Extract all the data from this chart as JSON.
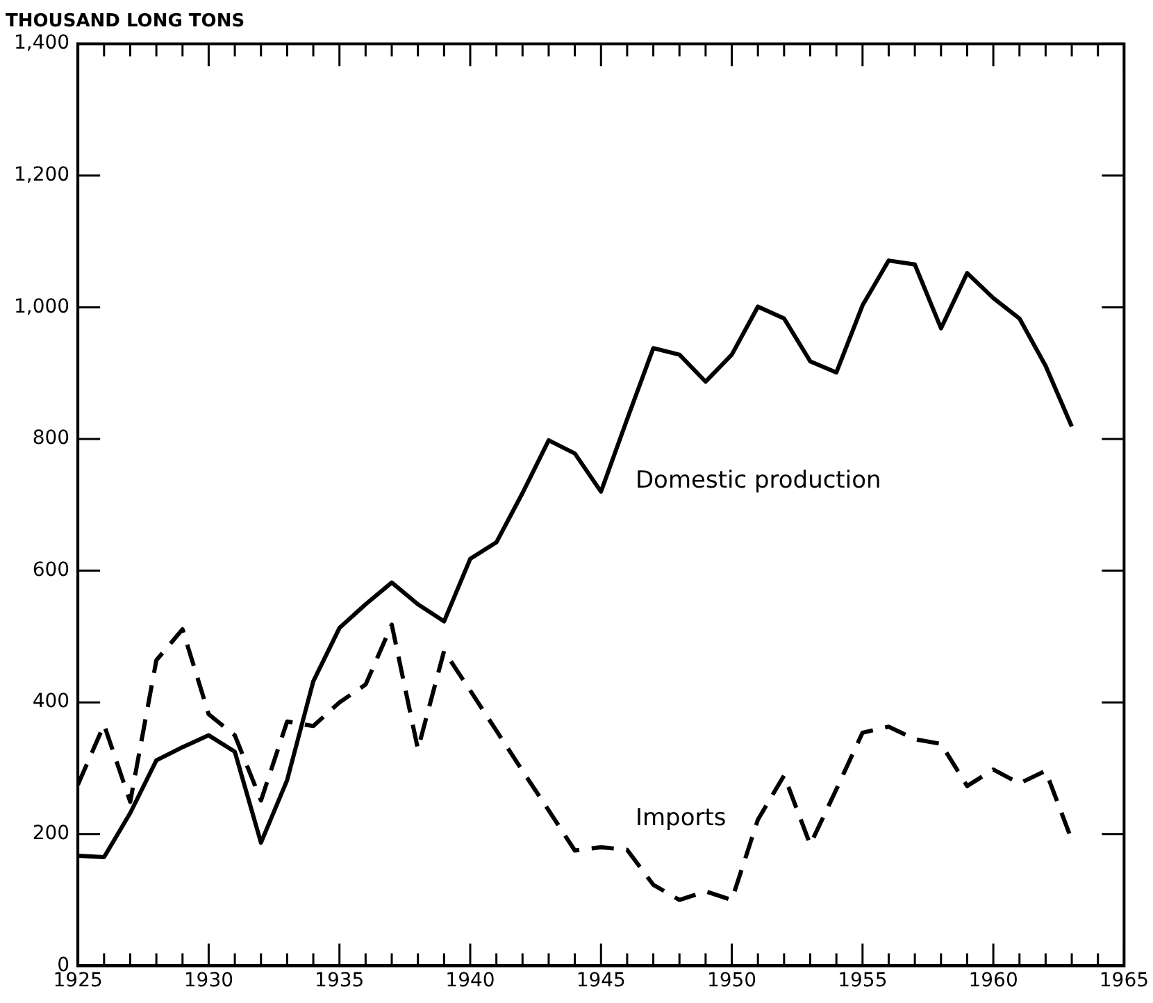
{
  "chart_data": {
    "type": "line",
    "ylabel": "THOUSAND LONG TONS",
    "x": [
      1925,
      1926,
      1927,
      1928,
      1929,
      1930,
      1931,
      1932,
      1933,
      1934,
      1935,
      1936,
      1937,
      1938,
      1939,
      1940,
      1941,
      1942,
      1943,
      1944,
      1945,
      1946,
      1947,
      1948,
      1949,
      1950,
      1951,
      1952,
      1953,
      1954,
      1955,
      1956,
      1957,
      1958,
      1959,
      1960,
      1961,
      1962,
      1963
    ],
    "series": [
      {
        "name": "Domestic production",
        "color": "#000000",
        "line_style": "solid",
        "values": [
          167,
          165,
          232,
          312,
          332,
          350,
          325,
          187,
          282,
          432,
          513,
          549,
          582,
          549,
          523,
          618,
          643,
          718,
          798,
          778,
          720,
          830,
          938,
          928,
          887,
          928,
          1001,
          983,
          918,
          901,
          1003,
          1071,
          1065,
          968,
          1052,
          1014,
          983,
          911,
          819
        ]
      },
      {
        "name": "Imports",
        "color": "#000000",
        "line_style": "dashed",
        "values": [
          275,
          366,
          249,
          464,
          511,
          382,
          350,
          251,
          371,
          364,
          400,
          427,
          518,
          329,
          478,
          418,
          357,
          296,
          236,
          175,
          180,
          176,
          123,
          100,
          113,
          100,
          222,
          289,
          184,
          268,
          354,
          363,
          344,
          337,
          273,
          298,
          277,
          296,
          191
        ]
      }
    ],
    "xlim": [
      1925,
      1965
    ],
    "xticks": [
      1925,
      {
        "value": 1926,
        "label": null
      },
      {
        "value": 1927,
        "label": null
      },
      {
        "value": 1928,
        "label": null
      },
      {
        "value": 1929,
        "label": null
      },
      1930,
      {
        "value": 1931,
        "label": null
      },
      {
        "value": 1932,
        "label": null
      },
      {
        "value": 1933,
        "label": null
      },
      {
        "value": 1934,
        "label": null
      },
      1935,
      {
        "value": 1936,
        "label": null
      },
      {
        "value": 1937,
        "label": null
      },
      {
        "value": 1938,
        "label": null
      },
      {
        "value": 1939,
        "label": null
      },
      1940,
      {
        "value": 1941,
        "label": null
      },
      {
        "value": 1942,
        "label": null
      },
      {
        "value": 1943,
        "label": null
      },
      {
        "value": 1944,
        "label": null
      },
      1945,
      {
        "value": 1946,
        "label": null
      },
      {
        "value": 1947,
        "label": null
      },
      {
        "value": 1948,
        "label": null
      },
      {
        "value": 1949,
        "label": null
      },
      1950,
      {
        "value": 1951,
        "label": null
      },
      {
        "value": 1952,
        "label": null
      },
      {
        "value": 1953,
        "label": null
      },
      {
        "value": 1954,
        "label": null
      },
      1955,
      {
        "value": 1956,
        "label": null
      },
      {
        "value": 1957,
        "label": null
      },
      {
        "value": 1958,
        "label": null
      },
      {
        "value": 1959,
        "label": null
      },
      1960,
      {
        "value": 1961,
        "label": null
      },
      {
        "value": 1962,
        "label": null
      },
      {
        "value": 1963,
        "label": null
      },
      {
        "value": 1964,
        "label": null
      },
      1965
    ],
    "ylim": [
      0,
      1400
    ],
    "yticks": [
      0,
      200,
      400,
      600,
      800,
      {
        "value": 1000,
        "label": "1,000"
      },
      {
        "value": 1200,
        "label": "1,200"
      },
      {
        "value": 1400,
        "label": "1,400"
      }
    ],
    "grid": false,
    "legend": false,
    "marker": "none"
  }
}
